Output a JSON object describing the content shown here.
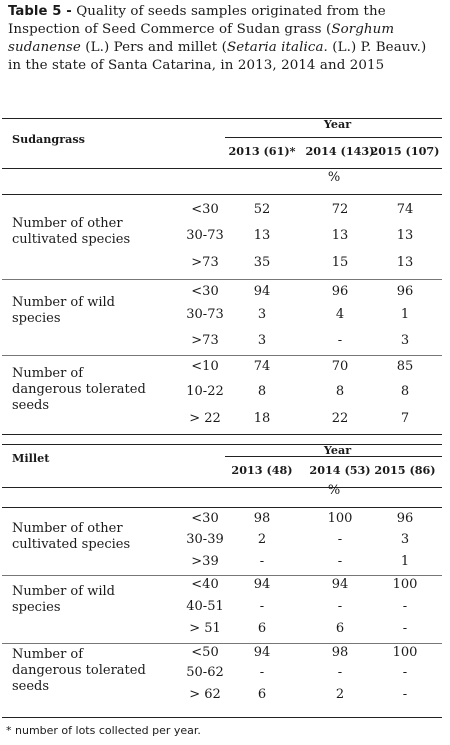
{
  "caption": {
    "label": "Table 5 -",
    "text": "Quality of seeds samples originated from the Inspection of Seed Commerce of Sudan grass (Sorghum sudanense (L.) Pers and millet (Setaria italica. (L.) P. Beauv.) in the state of Santa Catarina, in 2013, 2014 and 2015"
  },
  "tables": [
    {
      "crop": "Sudangrass",
      "year_header": "Year",
      "columns": [
        "2013 (61)*",
        "2014 (143)",
        "2015 (107)"
      ],
      "unit": "%",
      "groups": [
        {
          "label": "Number of other cultivated species",
          "rows": [
            {
              "range": "<30",
              "values": [
                "52",
                "72",
                "74"
              ]
            },
            {
              "range": "30-73",
              "values": [
                "13",
                "13",
                "13"
              ]
            },
            {
              "range": ">73",
              "values": [
                "35",
                "15",
                "13"
              ]
            }
          ]
        },
        {
          "label": "Number of wild species",
          "rows": [
            {
              "range": "<30",
              "values": [
                "94",
                "96",
                "96"
              ]
            },
            {
              "range": "30-73",
              "values": [
                "3",
                "4",
                "1"
              ]
            },
            {
              "range": ">73",
              "values": [
                "3",
                "-",
                "3"
              ]
            }
          ]
        },
        {
          "label": "Number of dangerous tolerated seeds",
          "rows": [
            {
              "range": "<10",
              "values": [
                "74",
                "70",
                "85"
              ]
            },
            {
              "range": "10-22",
              "values": [
                "8",
                "8",
                "8"
              ]
            },
            {
              "range": "> 22",
              "values": [
                "18",
                "22",
                "7"
              ]
            }
          ]
        }
      ]
    },
    {
      "crop": "Millet",
      "year_header": "Year",
      "columns": [
        "2013 (48)",
        "2014 (53)",
        "2015 (86)"
      ],
      "unit": "%",
      "groups": [
        {
          "label": "Number of other cultivated species",
          "rows": [
            {
              "range": "<30",
              "values": [
                "98",
                "100",
                "96"
              ]
            },
            {
              "range": "30-39",
              "values": [
                "2",
                "-",
                "3"
              ]
            },
            {
              "range": ">39",
              "values": [
                "-",
                "-",
                "1"
              ]
            }
          ]
        },
        {
          "label": "Number of wild species",
          "rows": [
            {
              "range": "<40",
              "values": [
                "94",
                "94",
                "100"
              ]
            },
            {
              "range": "40-51",
              "values": [
                "-",
                "-",
                "-"
              ]
            },
            {
              "range": "> 51",
              "values": [
                "6",
                "6",
                "-"
              ]
            }
          ]
        },
        {
          "label": "Number of dangerous tolerated seeds",
          "rows": [
            {
              "range": "<50",
              "values": [
                "94",
                "98",
                "100"
              ]
            },
            {
              "range": "50-62",
              "values": [
                "-",
                "-",
                "-"
              ]
            },
            {
              "range": "> 62",
              "values": [
                "6",
                "2",
                "-"
              ]
            }
          ]
        }
      ]
    }
  ],
  "footnote": "* number of lots collected per year."
}
